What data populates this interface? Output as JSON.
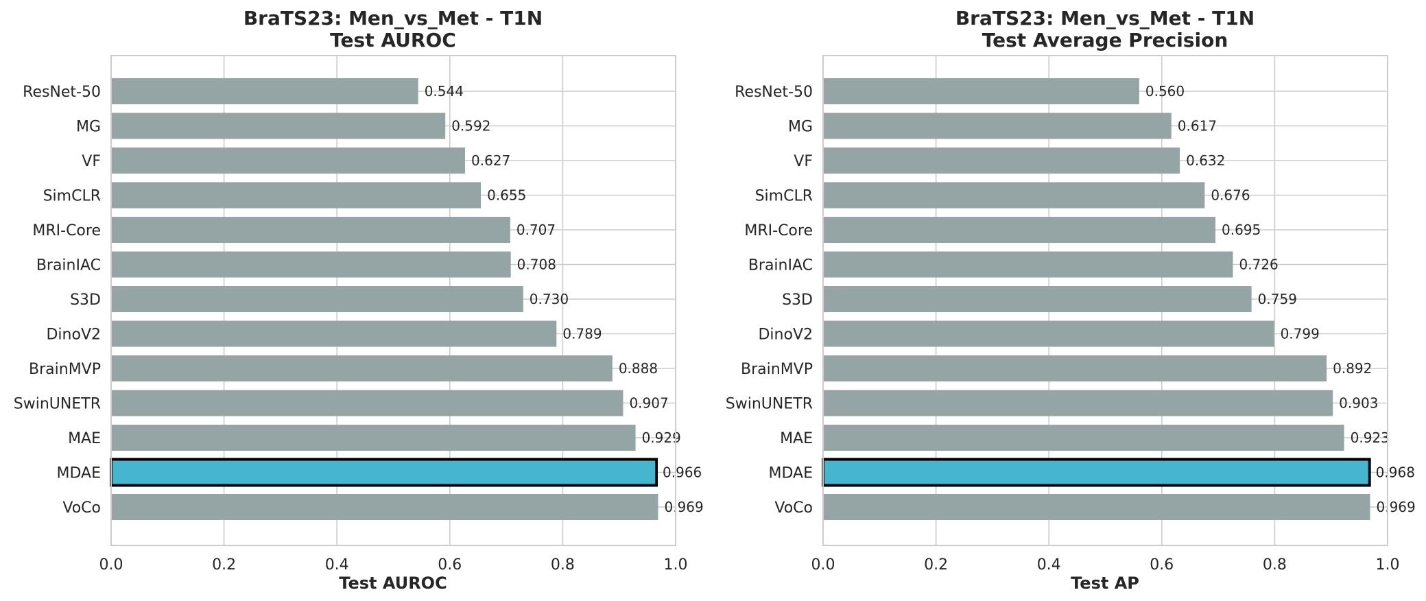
{
  "chart_data": [
    {
      "type": "bar",
      "orientation": "horizontal",
      "title": "BraTS23: Men_vs_Met - T1N",
      "subtitle": "Test AUROC",
      "xlabel": "Test AUROC",
      "ylabel": "",
      "xlim": [
        0.0,
        1.0
      ],
      "xticks": [
        "0.0",
        "0.2",
        "0.4",
        "0.6",
        "0.8",
        "1.0"
      ],
      "grid": true,
      "categories": [
        "ResNet-50",
        "MG",
        "VF",
        "SimCLR",
        "MRI-Core",
        "BrainIAC",
        "S3D",
        "DinoV2",
        "BrainMVP",
        "SwinUNETR",
        "MAE",
        "MDAE",
        "VoCo"
      ],
      "values": [
        0.544,
        0.592,
        0.627,
        0.655,
        0.707,
        0.708,
        0.73,
        0.789,
        0.888,
        0.907,
        0.929,
        0.966,
        0.969
      ],
      "value_labels": [
        "0.544",
        "0.592",
        "0.627",
        "0.655",
        "0.707",
        "0.708",
        "0.730",
        "0.789",
        "0.888",
        "0.907",
        "0.929",
        "0.966",
        "0.969"
      ],
      "highlight": "MDAE"
    },
    {
      "type": "bar",
      "orientation": "horizontal",
      "title": "BraTS23: Men_vs_Met - T1N",
      "subtitle": "Test Average Precision",
      "xlabel": "Test AP",
      "ylabel": "",
      "xlim": [
        0.0,
        1.0
      ],
      "xticks": [
        "0.0",
        "0.2",
        "0.4",
        "0.6",
        "0.8",
        "1.0"
      ],
      "grid": true,
      "categories": [
        "ResNet-50",
        "MG",
        "VF",
        "SimCLR",
        "MRI-Core",
        "BrainIAC",
        "S3D",
        "DinoV2",
        "BrainMVP",
        "SwinUNETR",
        "MAE",
        "MDAE",
        "VoCo"
      ],
      "values": [
        0.56,
        0.617,
        0.632,
        0.676,
        0.695,
        0.726,
        0.759,
        0.799,
        0.892,
        0.903,
        0.923,
        0.968,
        0.969
      ],
      "value_labels": [
        "0.560",
        "0.617",
        "0.632",
        "0.676",
        "0.695",
        "0.726",
        "0.759",
        "0.799",
        "0.892",
        "0.903",
        "0.923",
        "0.968",
        "0.969"
      ],
      "highlight": "MDAE"
    }
  ],
  "colors": {
    "bar": "#95a5a6",
    "highlight_bar": "#45b5d0",
    "highlight_edge": "#000000",
    "grid": "#cccccc",
    "frame": "#cccccc",
    "text": "#262626"
  }
}
